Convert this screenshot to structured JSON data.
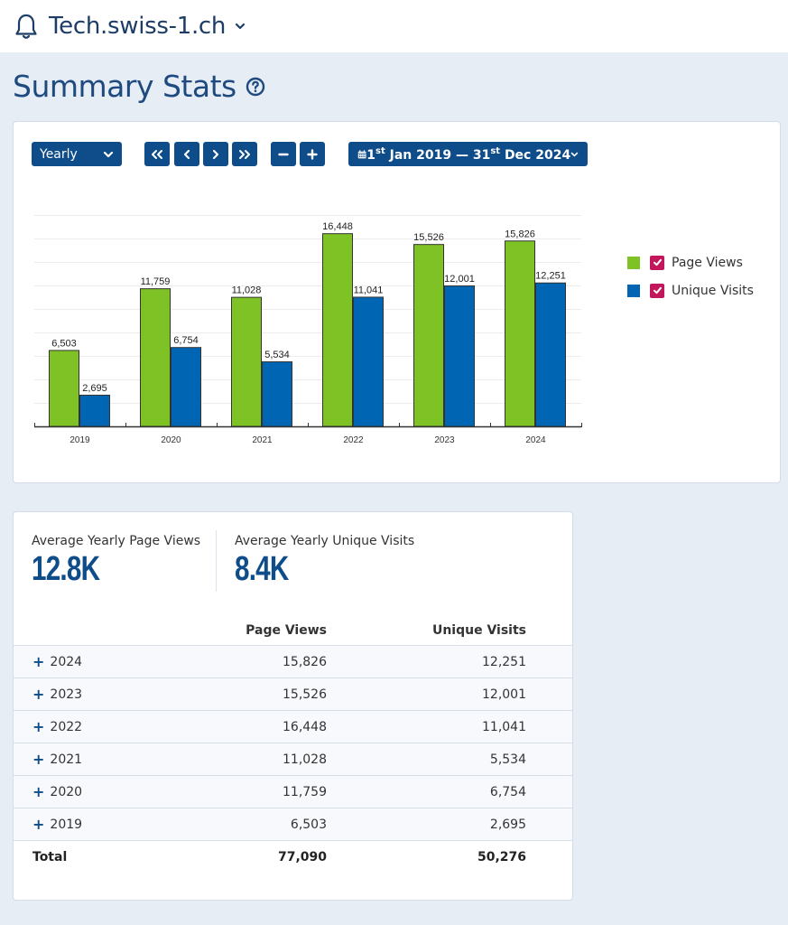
{
  "header": {
    "site_name": "Tech.swiss-1.ch",
    "bell_icon": "bell-icon",
    "dropdown_icon": "chevron-down-icon"
  },
  "page": {
    "title": "Summary Stats",
    "help_icon": "question-circle-icon"
  },
  "toolbar": {
    "period": "Yearly",
    "nav_buttons": [
      "first",
      "previous",
      "next",
      "last"
    ],
    "zoom_buttons": [
      "zoom-out",
      "zoom-in"
    ],
    "date_range": {
      "start_day": "1",
      "start_suffix": "st",
      "start_rest": "Jan 2019",
      "separator": "—",
      "end_day": "31",
      "end_suffix": "st",
      "end_rest": "Dec 2024"
    }
  },
  "colors": {
    "page_views": "#7ec225",
    "unique_visits": "#0066b3",
    "accent": "#0f4c8a",
    "checkbox": "#c2185b"
  },
  "chart_data": {
    "type": "bar",
    "title": "",
    "xlabel": "",
    "ylabel": "",
    "categories": [
      "2019",
      "2020",
      "2021",
      "2022",
      "2023",
      "2024"
    ],
    "series": [
      {
        "name": "Page Views",
        "values": [
          6503,
          11759,
          11028,
          16448,
          15526,
          15826
        ],
        "labels": [
          "6,503",
          "11,759",
          "11,028",
          "16,448",
          "15,526",
          "15,826"
        ],
        "checked": true
      },
      {
        "name": "Unique Visits",
        "values": [
          2695,
          6754,
          5534,
          11041,
          12001,
          12251
        ],
        "labels": [
          "2,695",
          "6,754",
          "5,534",
          "11,041",
          "12,001",
          "12,251"
        ],
        "checked": true
      }
    ],
    "ylim": [
      0,
      18000
    ],
    "grid_step": 2000,
    "grid": true,
    "legend": "right",
    "y_tick_labels_visible": false
  },
  "kpis": [
    {
      "label": "Average Yearly Page Views",
      "value": "12.8K"
    },
    {
      "label": "Average Yearly Unique Visits",
      "value": "8.4K"
    }
  ],
  "table": {
    "headers": [
      "",
      "Page Views",
      "Unique Visits"
    ],
    "rows": [
      {
        "year": "2024",
        "page_views": "15,826",
        "unique_visits": "12,251"
      },
      {
        "year": "2023",
        "page_views": "15,526",
        "unique_visits": "12,001"
      },
      {
        "year": "2022",
        "page_views": "16,448",
        "unique_visits": "11,041"
      },
      {
        "year": "2021",
        "page_views": "11,028",
        "unique_visits": "5,534"
      },
      {
        "year": "2020",
        "page_views": "11,759",
        "unique_visits": "6,754"
      },
      {
        "year": "2019",
        "page_views": "6,503",
        "unique_visits": "2,695"
      }
    ],
    "total": {
      "label": "Total",
      "page_views": "77,090",
      "unique_visits": "50,276"
    },
    "expand_symbol": "+"
  }
}
